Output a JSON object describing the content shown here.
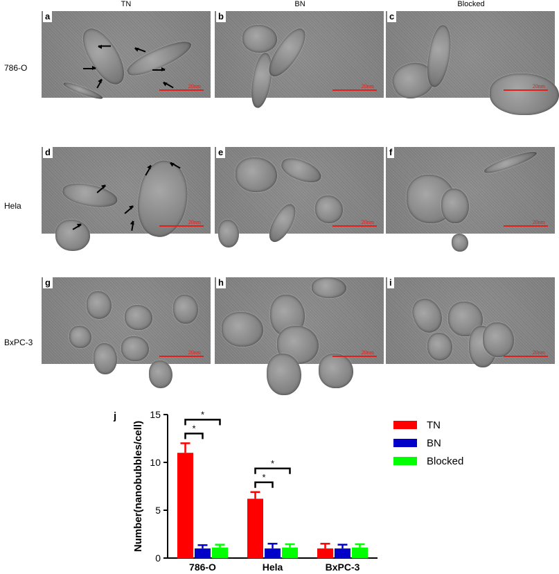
{
  "columns": [
    "TN",
    "BN",
    "Blocked"
  ],
  "rows": [
    "786-O",
    "Hela",
    "BxPC-3"
  ],
  "panels": [
    {
      "letter": "a",
      "scale": "20nm"
    },
    {
      "letter": "b",
      "scale": "20nm"
    },
    {
      "letter": "c",
      "scale": "20nm"
    },
    {
      "letter": "d",
      "scale": "20nm"
    },
    {
      "letter": "e",
      "scale": "20nm"
    },
    {
      "letter": "f",
      "scale": "20nm"
    },
    {
      "letter": "g",
      "scale": "20nm"
    },
    {
      "letter": "h",
      "scale": "20nm"
    },
    {
      "letter": "i",
      "scale": "20nm"
    }
  ],
  "chart_panel_letter": "j",
  "chart_data": {
    "type": "bar",
    "categories": [
      "786-O",
      "Hela",
      "BxPC-3"
    ],
    "series": [
      {
        "name": "TN",
        "color": "#ff0000",
        "values": [
          11.0,
          6.2,
          1.0
        ],
        "errors": [
          1.0,
          0.7,
          0.5
        ]
      },
      {
        "name": "BN",
        "color": "#0000c8",
        "values": [
          1.0,
          1.0,
          1.0
        ],
        "errors": [
          0.35,
          0.5,
          0.4
        ]
      },
      {
        "name": "Blocked",
        "color": "#00ff00",
        "values": [
          1.1,
          1.1,
          1.1
        ],
        "errors": [
          0.3,
          0.35,
          0.35
        ]
      }
    ],
    "ylabel": "Number(nanobubbles/cell)",
    "xlabel": "",
    "ylim": [
      0,
      15
    ],
    "yticks": [
      0,
      5,
      10,
      15
    ],
    "significance": [
      {
        "category": "786-O",
        "from": "TN",
        "to": "BN",
        "label": "*"
      },
      {
        "category": "786-O",
        "from": "TN",
        "to": "Blocked",
        "label": "*"
      },
      {
        "category": "Hela",
        "from": "TN",
        "to": "BN",
        "label": "*"
      },
      {
        "category": "Hela",
        "from": "TN",
        "to": "Blocked",
        "label": "*"
      }
    ],
    "legend_position": "right"
  }
}
